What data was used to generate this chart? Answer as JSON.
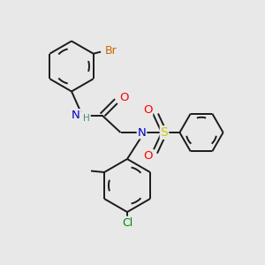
{
  "background_color": "#e8e8e8",
  "line_color": "#1a1a1a",
  "bond_width": 1.4,
  "atom_colors": {
    "Br": "#cc6600",
    "N": "#0000cc",
    "O": "#ff0000",
    "S": "#cccc00",
    "Cl": "#008800",
    "H": "#448888",
    "C": "#1a1a1a"
  },
  "font_size": 8.5
}
